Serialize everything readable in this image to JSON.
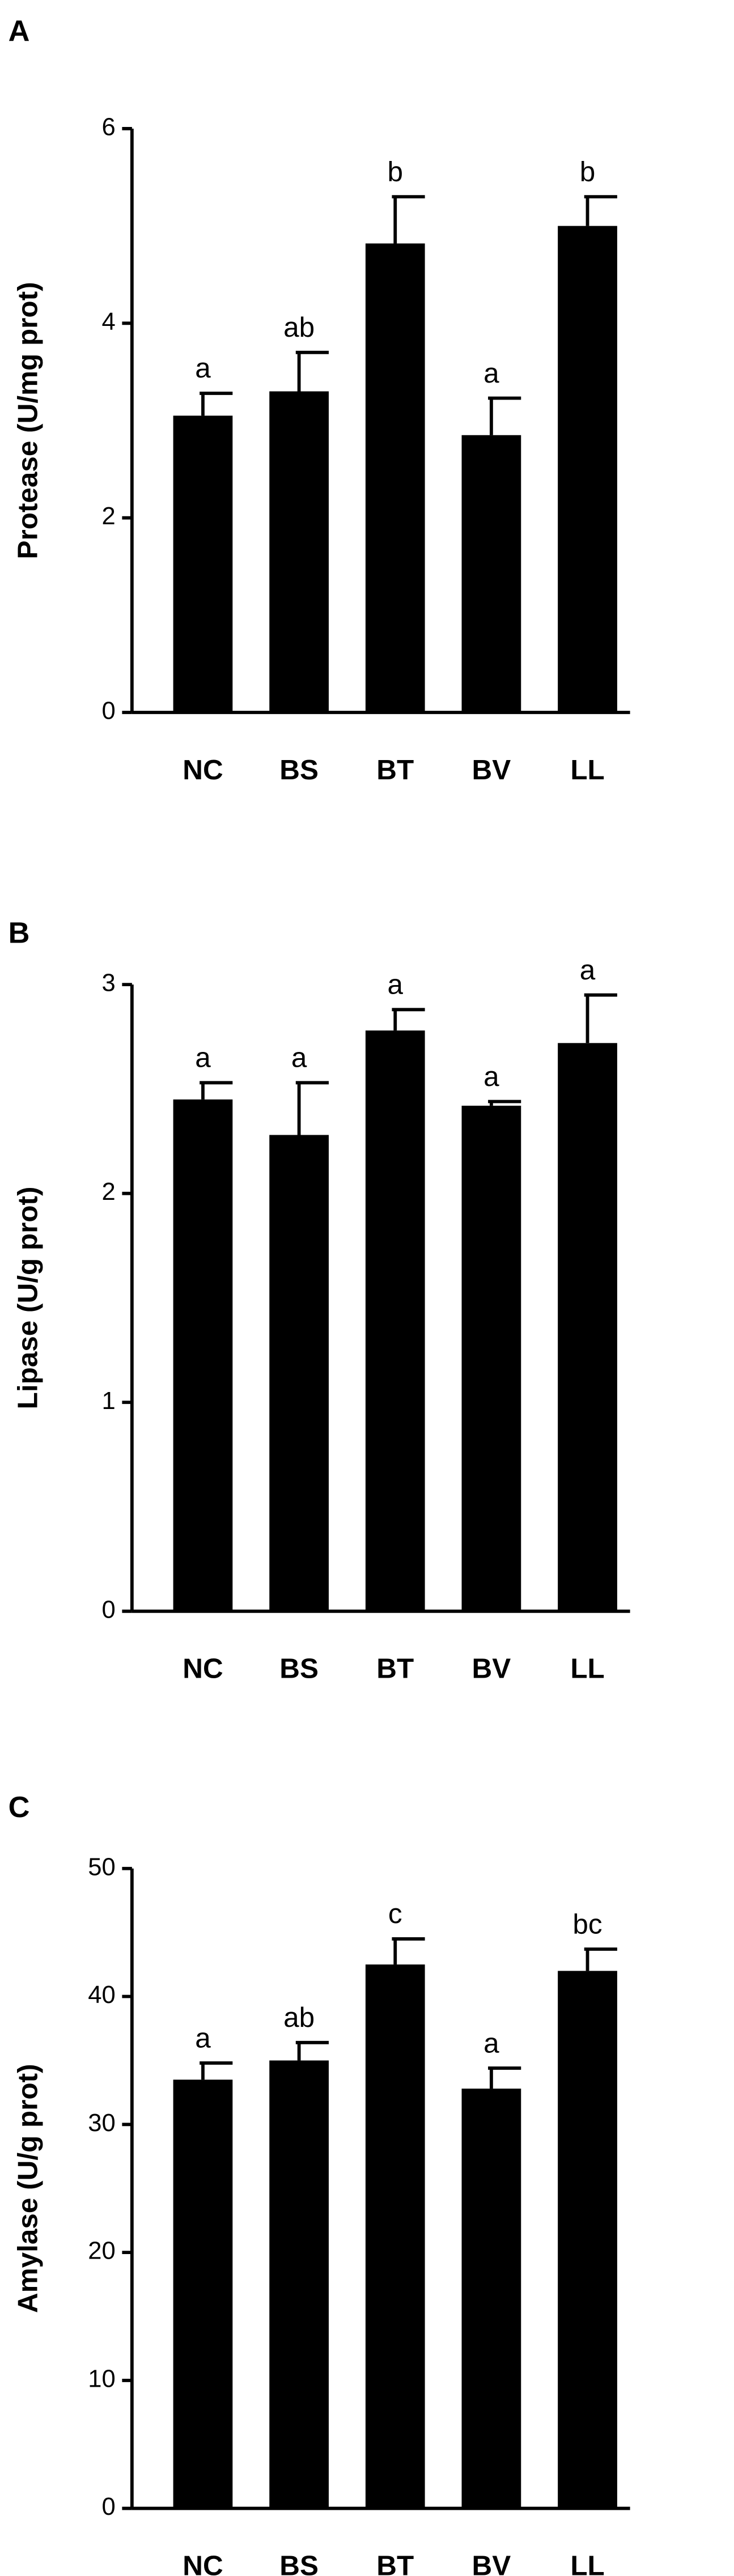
{
  "chart_data": [
    {
      "type": "bar",
      "panel_label": "A",
      "y_label": "Protease (U/mg prot)",
      "categories": [
        "NC",
        "BS",
        "BT",
        "BV",
        "LL"
      ],
      "values": [
        3.05,
        3.3,
        4.82,
        2.85,
        5.0
      ],
      "errors": [
        0.23,
        0.4,
        0.48,
        0.38,
        0.3
      ],
      "value_labels": [
        "a",
        "ab",
        "b",
        "a",
        "b"
      ],
      "color": "#000000",
      "ylim": [
        0,
        6
      ],
      "yticks": [
        0,
        2,
        4,
        6
      ]
    },
    {
      "type": "bar",
      "panel_label": "B",
      "y_label": "Lipase (U/g prot)",
      "categories": [
        "NC",
        "BS",
        "BT",
        "BV",
        "LL"
      ],
      "values": [
        2.45,
        2.28,
        2.78,
        2.42,
        2.72
      ],
      "errors": [
        0.08,
        0.25,
        0.1,
        0.02,
        0.23
      ],
      "value_labels": [
        "a",
        "a",
        "a",
        "a",
        "a"
      ],
      "color": "#000000",
      "ylim": [
        0,
        3
      ],
      "yticks": [
        0,
        1,
        2,
        3
      ]
    },
    {
      "type": "bar",
      "panel_label": "C",
      "y_label": "Amylase (U/g prot)",
      "categories": [
        "NC",
        "BS",
        "BT",
        "BV",
        "LL"
      ],
      "values": [
        33.5,
        35,
        42.5,
        32.8,
        42
      ],
      "errors": [
        1.3,
        1.4,
        2,
        1.6,
        1.7
      ],
      "value_labels": [
        "a",
        "ab",
        "c",
        "a",
        "bc"
      ],
      "color": "#000000",
      "ylim": [
        0,
        50
      ],
      "yticks": [
        0,
        10,
        20,
        30,
        40,
        50
      ]
    }
  ]
}
